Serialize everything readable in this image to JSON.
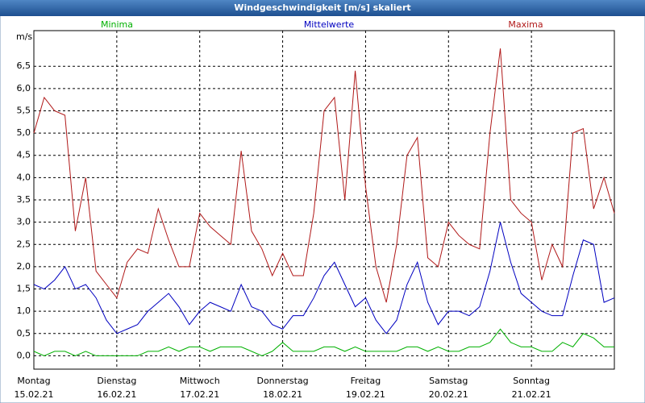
{
  "chart_data": {
    "type": "line",
    "title": "Windgeschwindigkeit [m/s] skaliert",
    "y_label": "m/s",
    "x": [
      0,
      3,
      6,
      9,
      12,
      15,
      18,
      21,
      24,
      27,
      30,
      33,
      36,
      39,
      42,
      45,
      48,
      51,
      54,
      57,
      60,
      63,
      66,
      69,
      72,
      75,
      78,
      81,
      84,
      87,
      90,
      93,
      96,
      99,
      102,
      105,
      108,
      111,
      114,
      117,
      120,
      123,
      126,
      129,
      132,
      135,
      138,
      141,
      144,
      147,
      150,
      153,
      156,
      159,
      162,
      165,
      168
    ],
    "xlim": [
      0,
      168
    ],
    "xticks": [
      {
        "value": 0,
        "label": "Montag"
      },
      {
        "value": 24,
        "label": "Dienstag"
      },
      {
        "value": 48,
        "label": "Mittwoch"
      },
      {
        "value": 72,
        "label": "Donnerstag"
      },
      {
        "value": 96,
        "label": "Freitag"
      },
      {
        "value": 120,
        "label": "Samstag"
      },
      {
        "value": 144,
        "label": "Sonntag"
      }
    ],
    "xtick_dates": [
      "15.02.21",
      "16.02.21",
      "17.02.21",
      "18.02.21",
      "19.02.21",
      "20.02.21",
      "21.02.21"
    ],
    "ylim": [
      -0.3,
      7.3
    ],
    "yticks": [
      {
        "value": 0,
        "label": "0,0"
      },
      {
        "value": 0.5,
        "label": "0,5"
      },
      {
        "value": 1,
        "label": "1,0"
      },
      {
        "value": 1.5,
        "label": "1,5"
      },
      {
        "value": 2,
        "label": "2,0"
      },
      {
        "value": 2.5,
        "label": "2,5"
      },
      {
        "value": 3,
        "label": "3,0"
      },
      {
        "value": 3.5,
        "label": "3,5"
      },
      {
        "value": 4,
        "label": "4,0"
      },
      {
        "value": 4.5,
        "label": "4,5"
      },
      {
        "value": 5,
        "label": "5,0"
      },
      {
        "value": 5.5,
        "label": "5,5"
      },
      {
        "value": 6,
        "label": "6,0"
      },
      {
        "value": 6.5,
        "label": "6,5"
      }
    ],
    "grid": true,
    "series": [
      {
        "name": "Minima",
        "color": "#00b000",
        "values": [
          0.1,
          0.0,
          0.1,
          0.1,
          0.0,
          0.1,
          0.0,
          0.0,
          0.0,
          0.0,
          0.0,
          0.1,
          0.1,
          0.2,
          0.1,
          0.2,
          0.2,
          0.1,
          0.2,
          0.2,
          0.2,
          0.1,
          0.0,
          0.1,
          0.3,
          0.1,
          0.1,
          0.1,
          0.2,
          0.2,
          0.1,
          0.2,
          0.1,
          0.1,
          0.1,
          0.1,
          0.2,
          0.2,
          0.1,
          0.2,
          0.1,
          0.1,
          0.2,
          0.2,
          0.3,
          0.6,
          0.3,
          0.2,
          0.2,
          0.1,
          0.1,
          0.3,
          0.2,
          0.5,
          0.4,
          0.2,
          0.2
        ]
      },
      {
        "name": "Mittelwerte",
        "color": "#0000c0",
        "values": [
          1.6,
          1.5,
          1.7,
          2.0,
          1.5,
          1.6,
          1.3,
          0.8,
          0.5,
          0.6,
          0.7,
          1.0,
          1.2,
          1.4,
          1.1,
          0.7,
          1.0,
          1.2,
          1.1,
          1.0,
          1.6,
          1.1,
          1.0,
          0.7,
          0.6,
          0.9,
          0.9,
          1.3,
          1.8,
          2.1,
          1.6,
          1.1,
          1.3,
          0.8,
          0.5,
          0.8,
          1.6,
          2.1,
          1.2,
          0.7,
          1.0,
          1.0,
          0.9,
          1.1,
          1.9,
          3.0,
          2.1,
          1.4,
          1.2,
          1.0,
          0.9,
          0.9,
          1.8,
          2.6,
          2.5,
          1.2,
          1.3
        ]
      },
      {
        "name": "Maxima",
        "color": "#b01818",
        "values": [
          5.0,
          5.8,
          5.5,
          5.4,
          2.8,
          4.0,
          1.9,
          1.6,
          1.3,
          2.1,
          2.4,
          2.3,
          3.3,
          2.6,
          2.0,
          2.0,
          3.2,
          2.9,
          2.7,
          2.5,
          4.6,
          2.8,
          2.4,
          1.8,
          2.3,
          1.8,
          1.8,
          3.2,
          5.5,
          5.8,
          3.5,
          6.4,
          3.8,
          2.0,
          1.2,
          2.5,
          4.5,
          4.9,
          2.2,
          2.0,
          3.0,
          2.7,
          2.5,
          2.4,
          5.0,
          6.9,
          3.5,
          3.2,
          3.0,
          1.7,
          2.5,
          2.0,
          5.0,
          5.1,
          3.3,
          4.0,
          3.2
        ]
      }
    ]
  }
}
